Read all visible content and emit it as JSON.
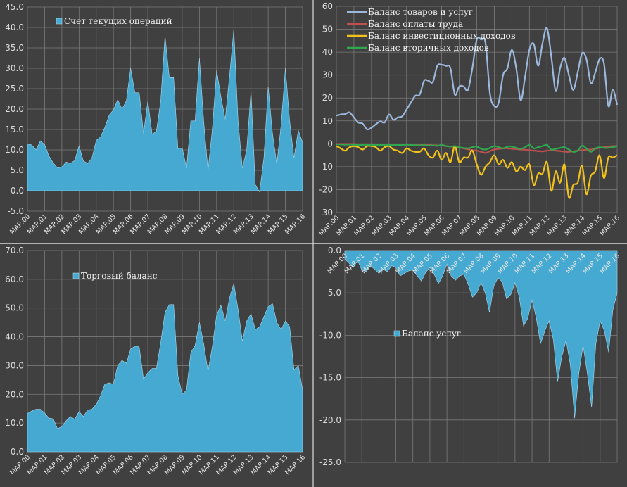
{
  "chart_data": [
    {
      "type": "area",
      "x_tick_labels": [
        "МАР.00",
        "МАР.01",
        "МАР.02",
        "МАР.03",
        "МАР.04",
        "МАР.05",
        "МАР.06",
        "МАР.07",
        "МАР.08",
        "МАР.09",
        "МАР.10",
        "МАР.11",
        "МАР.12",
        "МАР.13",
        "МАР.14",
        "МАР.15",
        "МАР.16"
      ],
      "y_tick_labels": [
        "-5.0",
        "0.0",
        "5.0",
        "10.0",
        "15.0",
        "20.0",
        "25.0",
        "30.0",
        "35.0",
        "40.0",
        "45.0"
      ],
      "ylim": [
        -5,
        45
      ],
      "grid": true,
      "legend_position": "top-left",
      "color": "#45a9d1",
      "series": [
        {
          "name": "Счет текущих операций",
          "values": [
            11.5,
            11.2,
            10.0,
            12.2,
            11.3,
            8.5,
            6.8,
            5.6,
            5.8,
            7.0,
            6.7,
            7.4,
            11.0,
            7.3,
            6.7,
            8.0,
            12.3,
            13.2,
            15.5,
            18.5,
            19.8,
            22.3,
            20.0,
            22.0,
            30.0,
            24.0,
            24.0,
            14.0,
            22.0,
            13.8,
            14.6,
            22.0,
            38.0,
            27.7,
            27.7,
            10.3,
            10.5,
            5.5,
            17.1,
            17.1,
            32.5,
            17.0,
            5.0,
            15.0,
            29.5,
            23.0,
            17.5,
            28.0,
            39.5,
            17.0,
            5.5,
            10.0,
            24.5,
            1.5,
            -0.3,
            8.0,
            25.5,
            14.0,
            6.5,
            16.0,
            30.0,
            17.0,
            8.0,
            14.8,
            11.8
          ]
        }
      ]
    },
    {
      "type": "line",
      "x_tick_labels": [
        "МАР.00",
        "МАР.01",
        "МАР.02",
        "МАР.03",
        "МАР.04",
        "МАР.05",
        "МАР.06",
        "МАР.07",
        "МАР.08",
        "МАР.09",
        "МАР.10",
        "МАР.11",
        "МАР.12",
        "МАР.13",
        "МАР.14",
        "МАР.15",
        "МАР.16"
      ],
      "y_tick_labels": [
        "-30",
        "-20",
        "-10",
        "0",
        "10",
        "20",
        "30",
        "40",
        "50",
        "60"
      ],
      "ylim": [
        -30,
        60
      ],
      "grid": true,
      "legend_position": "top-left",
      "series": [
        {
          "name": "Баланс товаров и услуг",
          "color": "#9cb8dc",
          "values": [
            12.3,
            12.8,
            13.0,
            13.7,
            11.5,
            9.3,
            8.8,
            6.3,
            7.0,
            8.5,
            9.8,
            9.3,
            12.8,
            10.5,
            11.5,
            12.0,
            15.0,
            18.0,
            21.0,
            21.5,
            27.5,
            27.5,
            27.0,
            34.0,
            34.5,
            34.0,
            33.0,
            21.5,
            25.0,
            25.0,
            23.5,
            33.0,
            45.5,
            45.5,
            44.0,
            22.0,
            16.5,
            18.0,
            30.0,
            33.0,
            41.0,
            33.0,
            19.0,
            29.0,
            41.0,
            43.5,
            34.0,
            44.0,
            50.5,
            38.0,
            23.0,
            33.0,
            37.5,
            30.0,
            23.5,
            31.0,
            39.5,
            37.0,
            26.5,
            31.0,
            37.0,
            35.0,
            16.5,
            23.5,
            17.0
          ]
        },
        {
          "name": "Баланс оплаты труда",
          "color": "#c0504d",
          "values": [
            -0.1,
            -0.1,
            -0.1,
            -0.1,
            -0.1,
            -0.2,
            -0.2,
            -0.2,
            -0.2,
            -0.2,
            -0.3,
            -0.3,
            -0.3,
            -0.3,
            -0.3,
            -0.4,
            -0.4,
            -0.4,
            -0.4,
            -0.5,
            -0.5,
            -0.5,
            -0.6,
            -0.7,
            -0.8,
            -1.0,
            -1.2,
            -1.4,
            -1.6,
            -2.0,
            -2.4,
            -2.8,
            -3.0,
            -3.5,
            -4.0,
            -3.2,
            -2.5,
            -2.2,
            -2.0,
            -2.0,
            -2.2,
            -2.3,
            -2.5,
            -2.6,
            -2.8,
            -3.0,
            -3.2,
            -3.3,
            -3.0,
            -2.8,
            -3.0,
            -3.2,
            -3.4,
            -3.5,
            -3.3,
            -3.0,
            -2.8,
            -2.6,
            -2.5,
            -2.2,
            -1.8,
            -1.5,
            -1.2,
            -1.0,
            -1.0
          ]
        },
        {
          "name": "Баланс инвестиционных доходов",
          "color": "#f2c21b",
          "values": [
            -1.0,
            -2.0,
            -3.0,
            -1.5,
            -1.0,
            -1.5,
            -2.5,
            -1.0,
            -1.0,
            -1.5,
            -3.0,
            -1.5,
            -1.0,
            -2.5,
            -3.0,
            -4.0,
            -2.0,
            -3.0,
            -3.5,
            -3.5,
            -2.0,
            -5.0,
            -6.0,
            -3.0,
            -7.0,
            -4.0,
            -8.0,
            -1.0,
            -8.0,
            -6.0,
            -6.0,
            -3.0,
            -9.0,
            -13.5,
            -10.0,
            -8.0,
            -5.0,
            -9.0,
            -7.0,
            -10.5,
            -8.0,
            -12.0,
            -10.0,
            -11.5,
            -9.0,
            -18.0,
            -13.0,
            -13.0,
            -8.0,
            -20.5,
            -12.0,
            -17.0,
            -9.0,
            -23.5,
            -18.0,
            -17.0,
            -9.5,
            -22.0,
            -14.0,
            -12.0,
            -5.0,
            -15.0,
            -6.0,
            -6.0,
            -5.0
          ]
        },
        {
          "name": "Баланс вторичных доходов",
          "color": "#2ea84f",
          "values": [
            -0.2,
            -0.3,
            -0.4,
            -0.3,
            -0.4,
            -0.5,
            -0.5,
            -0.4,
            -0.5,
            -0.6,
            -0.5,
            -0.6,
            -0.5,
            -0.6,
            -0.5,
            -0.6,
            -0.4,
            -0.5,
            -0.6,
            -0.7,
            -0.6,
            -0.8,
            -0.7,
            -0.9,
            -0.5,
            -1.0,
            -1.2,
            -1.0,
            -1.5,
            -1.8,
            -2.0,
            -1.5,
            -1.2,
            -2.2,
            -2.5,
            -1.8,
            -1.0,
            -1.5,
            -2.0,
            -1.3,
            -1.2,
            -1.8,
            -2.2,
            -1.5,
            -0.5,
            -2.0,
            -1.5,
            -1.0,
            -0.5,
            -2.5,
            -2.2,
            -1.8,
            -1.5,
            -2.5,
            -3.5,
            -3.0,
            -0.8,
            -2.0,
            -3.5,
            -2.0,
            -1.5,
            -1.8,
            -1.8,
            -1.5,
            -1.0
          ]
        }
      ]
    },
    {
      "type": "area",
      "x_tick_labels": [
        "МАР.00",
        "МАР.01",
        "МАР.02",
        "МАР.03",
        "МАР.04",
        "МАР.05",
        "МАР.06",
        "МАР.07",
        "МАР.08",
        "МАР.09",
        "МАР.10",
        "МАР.11",
        "МАР.12",
        "МАР.13",
        "МАР.14",
        "МАР.15",
        "МАР.16"
      ],
      "y_tick_labels": [
        "0.0",
        "10.0",
        "20.0",
        "30.0",
        "40.0",
        "50.0",
        "60.0",
        "70.0"
      ],
      "ylim": [
        0,
        70
      ],
      "grid": true,
      "legend_position": "top-left",
      "color": "#45a9d1",
      "series": [
        {
          "name": "Торговый баланс",
          "values": [
            13.3,
            14.2,
            14.8,
            14.8,
            13.5,
            11.7,
            11.5,
            8.0,
            8.8,
            10.8,
            12.3,
            11.3,
            14.0,
            12.3,
            14.5,
            14.8,
            16.5,
            19.5,
            23.5,
            24.0,
            23.5,
            30.0,
            31.8,
            30.8,
            35.7,
            36.8,
            36.5,
            25.3,
            27.5,
            29.0,
            29.0,
            38.0,
            48.5,
            51.2,
            51.2,
            26.5,
            20.0,
            21.5,
            34.5,
            37.0,
            45.0,
            37.5,
            28.0,
            36.5,
            47.5,
            51.0,
            45.5,
            53.5,
            58.5,
            49.5,
            38.5,
            45.5,
            48.0,
            42.5,
            43.5,
            47.0,
            50.5,
            51.5,
            45.0,
            42.5,
            45.5,
            43.5,
            28.5,
            30.0,
            21.5
          ]
        }
      ]
    },
    {
      "type": "area",
      "x_tick_labels": [
        "МАР.00",
        "МАР.01",
        "МАР.02",
        "МАР.03",
        "МАР.04",
        "МАР.05",
        "МАР.06",
        "МАР.07",
        "МАР.08",
        "МАР.09",
        "МАР.10",
        "МАР.11",
        "МАР.12",
        "МАР.13",
        "МАР.14",
        "МАР.15",
        "МАР.16"
      ],
      "y_tick_labels": [
        "-25.0",
        "-20.0",
        "-15.0",
        "-10.0",
        "-5.0",
        "0.0"
      ],
      "ylim": [
        -25,
        0
      ],
      "grid": true,
      "legend_position": "center-left",
      "color": "#45a9d1",
      "series": [
        {
          "name": "Баланс услуг",
          "values": [
            -1.0,
            -1.5,
            -2.0,
            -1.2,
            -2.3,
            -2.5,
            -1.8,
            -2.2,
            -2.7,
            -2.2,
            -2.5,
            -1.8,
            -2.0,
            -3.0,
            -2.7,
            -2.4,
            -2.3,
            -3.0,
            -3.6,
            -2.6,
            -2.0,
            -2.8,
            -3.9,
            -3.0,
            -1.6,
            -3.0,
            -3.5,
            -3.0,
            -2.8,
            -4.0,
            -5.5,
            -5.0,
            -3.8,
            -5.0,
            -7.3,
            -4.2,
            -3.2,
            -3.7,
            -5.7,
            -5.2,
            -3.8,
            -5.5,
            -8.9,
            -8.0,
            -5.8,
            -8.0,
            -11.0,
            -9.5,
            -8.3,
            -10.5,
            -15.5,
            -12.5,
            -10.6,
            -13.5,
            -19.8,
            -14.5,
            -11.2,
            -14.5,
            -18.5,
            -11.0,
            -8.3,
            -9.5,
            -12.0,
            -7.0,
            -5.0
          ]
        }
      ]
    }
  ]
}
